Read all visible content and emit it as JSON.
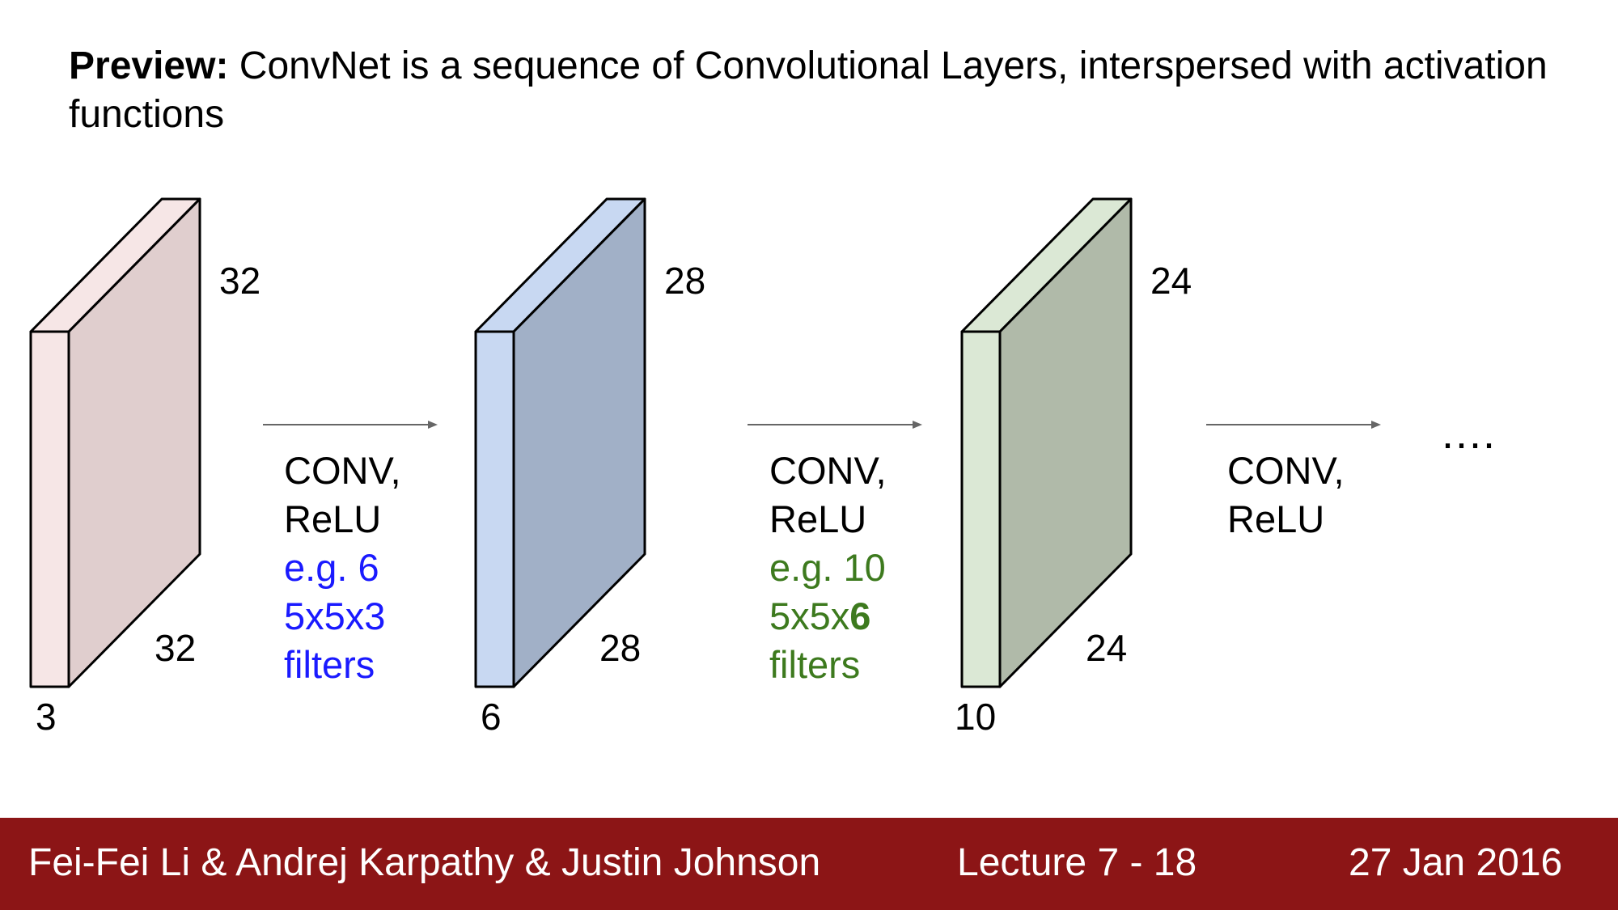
{
  "heading": {
    "prefix": "Preview:",
    "text": " ConvNet is a sequence of Convolutional Layers, interspersed with activation functions"
  },
  "volumes": [
    {
      "height_label": "32",
      "width_label": "32",
      "depth_label": "3",
      "front_color": "#f6e6e6",
      "side_color": "#e0cece"
    },
    {
      "height_label": "28",
      "width_label": "28",
      "depth_label": "6",
      "front_color": "#c8d8f2",
      "side_color": "#a1b0c7"
    },
    {
      "height_label": "24",
      "width_label": "24",
      "depth_label": "10",
      "front_color": "#dbe8d5",
      "side_color": "#b0baa9"
    }
  ],
  "operations": [
    {
      "line1": "CONV,",
      "line2": "ReLU",
      "detail1": "e.g. 6",
      "detail2": "5x5x3",
      "detail2_bold": "",
      "detail3": "filters",
      "detail_color": "#1a1aff"
    },
    {
      "line1": "CONV,",
      "line2": "ReLU",
      "detail1": "e.g. 10",
      "detail2": "5x5x",
      "detail2_bold": "6",
      "detail3": "filters",
      "detail_color": "#3d7a1e"
    },
    {
      "line1": "CONV,",
      "line2": "ReLU"
    }
  ],
  "ellipsis": "....",
  "arrow_color": "#666666",
  "footer": {
    "authors": "Fei-Fei Li & Andrej Karpathy & Justin Johnson",
    "lecture": "Lecture 7 - 18",
    "date": "27 Jan 2016",
    "background": "#8c1516"
  }
}
